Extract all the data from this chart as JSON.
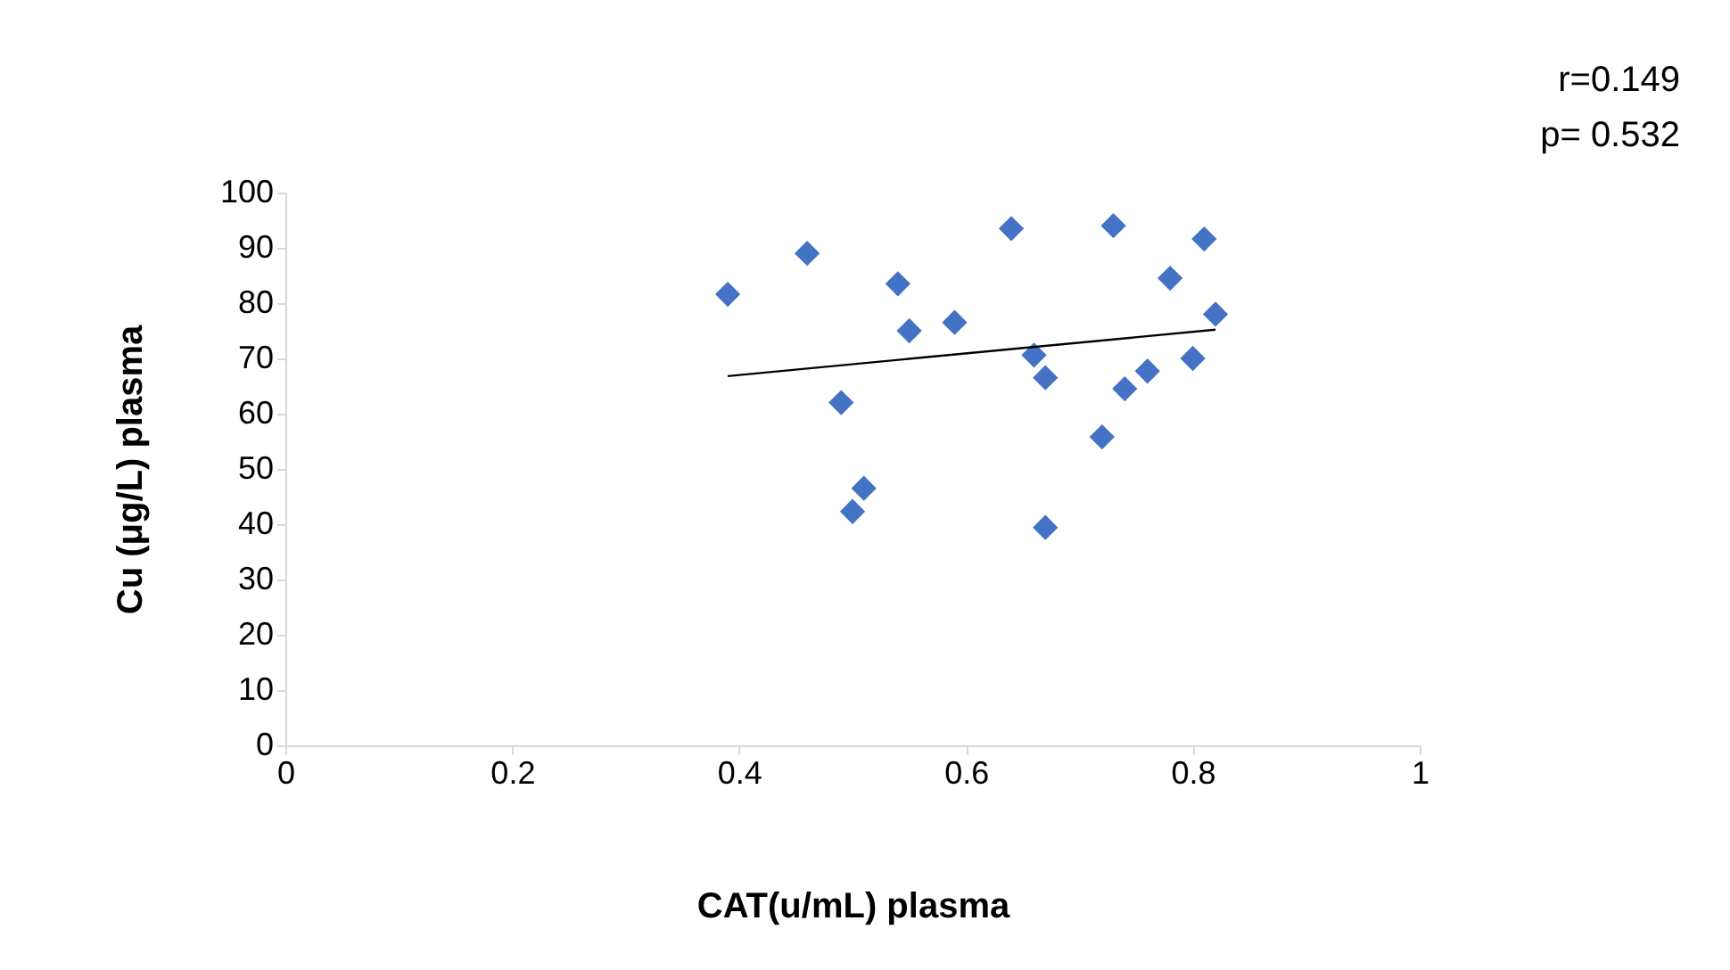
{
  "chart_data": {
    "type": "scatter",
    "xlabel": "CAT(u/mL) plasma",
    "ylabel": "Cu (μg/L) plasma",
    "xlim": [
      0,
      1
    ],
    "ylim": [
      0,
      100
    ],
    "xticks": [
      0,
      0.2,
      0.4,
      0.6,
      0.8,
      1
    ],
    "yticks": [
      0,
      10,
      20,
      30,
      40,
      50,
      60,
      70,
      80,
      90,
      100
    ],
    "grid": false,
    "annotations": [
      "r=0.149",
      "p= 0.532"
    ],
    "series": [
      {
        "marker": "diamond",
        "color": "#4472c4",
        "x": [
          0.39,
          0.46,
          0.49,
          0.54,
          0.55,
          0.59,
          0.64,
          0.73,
          0.66,
          0.67,
          0.5,
          0.51,
          0.67,
          0.72,
          0.74,
          0.76,
          0.78,
          0.8,
          0.81,
          0.82
        ],
        "values": [
          81.6,
          89,
          62,
          83.5,
          75,
          76.5,
          93.5,
          94,
          70.6,
          66.5,
          42.3,
          46.5,
          39.4,
          55.8,
          64.5,
          67.7,
          84.5,
          70,
          91.6,
          78
        ]
      },
      {
        "type": "line",
        "marker": "none",
        "color": "#000000",
        "line_style": "solid",
        "x": [
          0.39,
          0.82
        ],
        "values": [
          66.8,
          75.2
        ]
      }
    ]
  }
}
